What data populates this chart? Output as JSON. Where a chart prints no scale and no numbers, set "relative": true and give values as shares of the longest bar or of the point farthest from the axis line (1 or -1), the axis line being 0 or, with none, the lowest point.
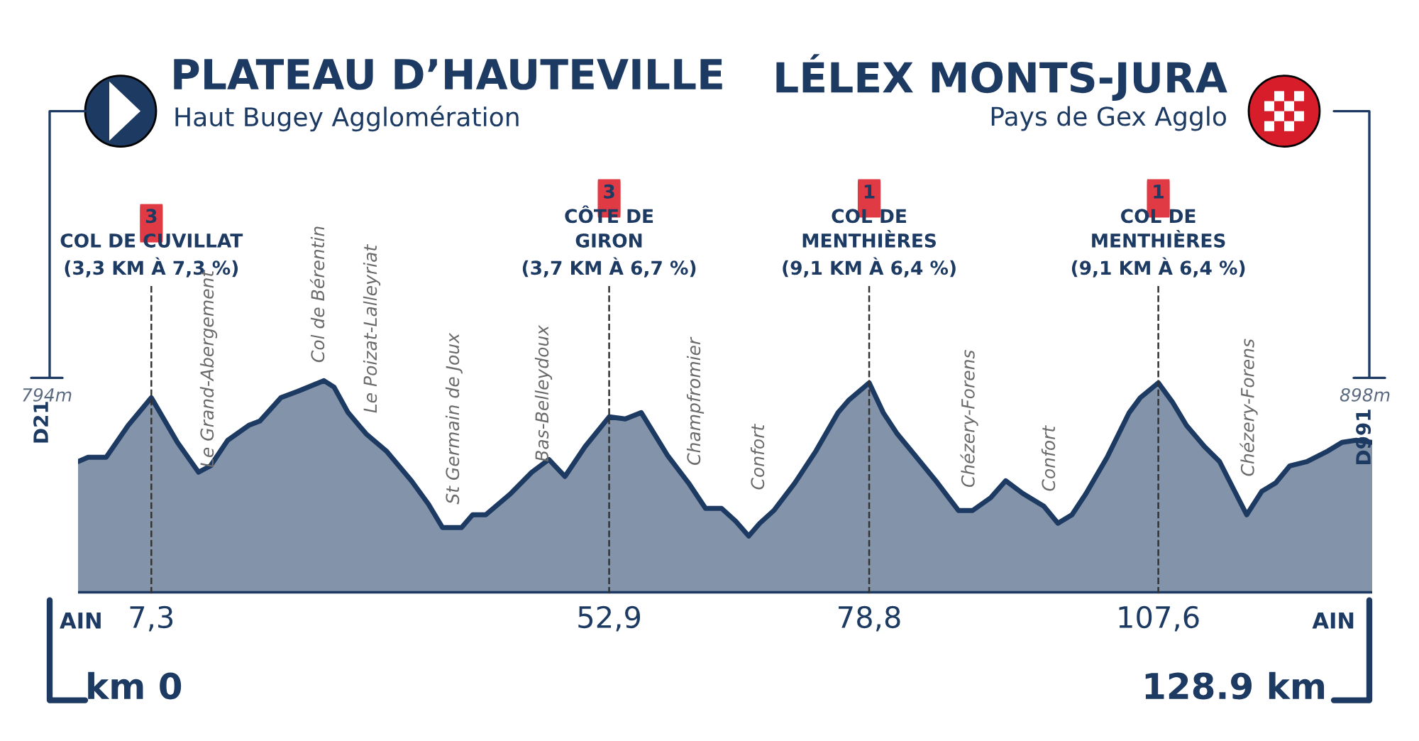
{
  "chart_data": {
    "type": "area",
    "relative": true,
    "title": "PLATEAU D’HAUTEVILLE",
    "subtitle": "Haut Bugey Agglomération",
    "x": [
      0,
      1.0,
      2.8,
      5.0,
      7.3,
      9.9,
      12.0,
      13.2,
      14.9,
      17.0,
      18.1,
      20.2,
      21.9,
      24.5,
      25.5,
      26.9,
      28.7,
      30.7,
      33.2,
      34.9,
      36.3,
      38.2,
      39.3,
      40.6,
      43.1,
      45.2,
      46.9,
      48.5,
      50.5,
      52.9,
      54.5,
      56.1,
      58.7,
      60.8,
      62.5,
      64.1,
      65.5,
      66.8,
      67.9,
      69.3,
      71.4,
      73.5,
      75.7,
      76.8,
      78.8,
      80.2,
      81.6,
      83.0,
      85.6,
      87.7,
      89.1,
      90.9,
      92.4,
      94.1,
      96.2,
      97.6,
      99.0,
      100.4,
      102.5,
      104.7,
      105.8,
      107.6,
      109.0,
      110.4,
      112.2,
      113.7,
      115.1,
      116.4,
      117.9,
      119.3,
      120.7,
      122.4,
      124.5,
      125.9,
      127.3,
      128.9
    ],
    "series": [
      {
        "color": "#1d3a63",
        "values": [
          0.62,
          0.64,
          0.64,
          0.79,
          0.92,
          0.71,
          0.57,
          0.6,
          0.72,
          0.79,
          0.81,
          0.92,
          0.95,
          1.0,
          0.97,
          0.85,
          0.75,
          0.67,
          0.53,
          0.42,
          0.31,
          0.31,
          0.37,
          0.37,
          0.47,
          0.57,
          0.63,
          0.55,
          0.69,
          0.83,
          0.82,
          0.85,
          0.65,
          0.52,
          0.4,
          0.4,
          0.34,
          0.27,
          0.33,
          0.39,
          0.52,
          0.67,
          0.85,
          0.91,
          0.99,
          0.85,
          0.75,
          0.67,
          0.52,
          0.39,
          0.39,
          0.45,
          0.53,
          0.47,
          0.41,
          0.33,
          0.37,
          0.47,
          0.64,
          0.85,
          0.92,
          0.99,
          0.9,
          0.79,
          0.69,
          0.62,
          0.49,
          0.37,
          0.48,
          0.52,
          0.6,
          0.62,
          0.67,
          0.71,
          0.72,
          0.71
        ]
      }
    ],
    "xlim": [
      0,
      128.9
    ],
    "xticks": [
      {
        "value": 7.3,
        "label": "7,3"
      },
      {
        "value": 52.9,
        "label": "52,9"
      },
      {
        "value": 78.8,
        "label": "78,8"
      },
      {
        "value": 107.6,
        "label": "107,6"
      }
    ],
    "ref_lines": [
      {
        "axis": "x",
        "value": 7.3,
        "label": "3\nCOL DE CUVILLAT\n(3,3 KM À 7,3 %)",
        "line_style": "dashed"
      },
      {
        "axis": "x",
        "value": 52.9,
        "label": "3\nCÔTE DE\nGIRON\n(3,7 KM À 6,7 %)",
        "line_style": "dashed"
      },
      {
        "axis": "x",
        "value": 78.8,
        "label": "1\nCOL DE\nMENTHIÈRES\n(9,1 KM À 6,4 %)",
        "line_style": "dashed"
      },
      {
        "axis": "x",
        "value": 107.6,
        "label": "1\nCOL DE\nMENTHIÈRES\n(9,1 KM À 6,4 %)",
        "line_style": "dashed"
      }
    ],
    "annotations": [
      "LÉLEX MONTS-JURA",
      "Pays de Gex Agglo",
      "AIN",
      "AIN",
      "km 0",
      "128.9 km",
      "794m",
      "898m",
      "D21",
      "D991",
      "Le Grand-Abergement",
      "Col de Bérentin",
      "Le Poizat-Lalleyriat",
      "St Germain de Joux",
      "Bas-Belleydoux",
      "Champfromier",
      "Confort",
      "Chézery-Forens",
      "Confort",
      "Chézery-Forens"
    ]
  }
}
